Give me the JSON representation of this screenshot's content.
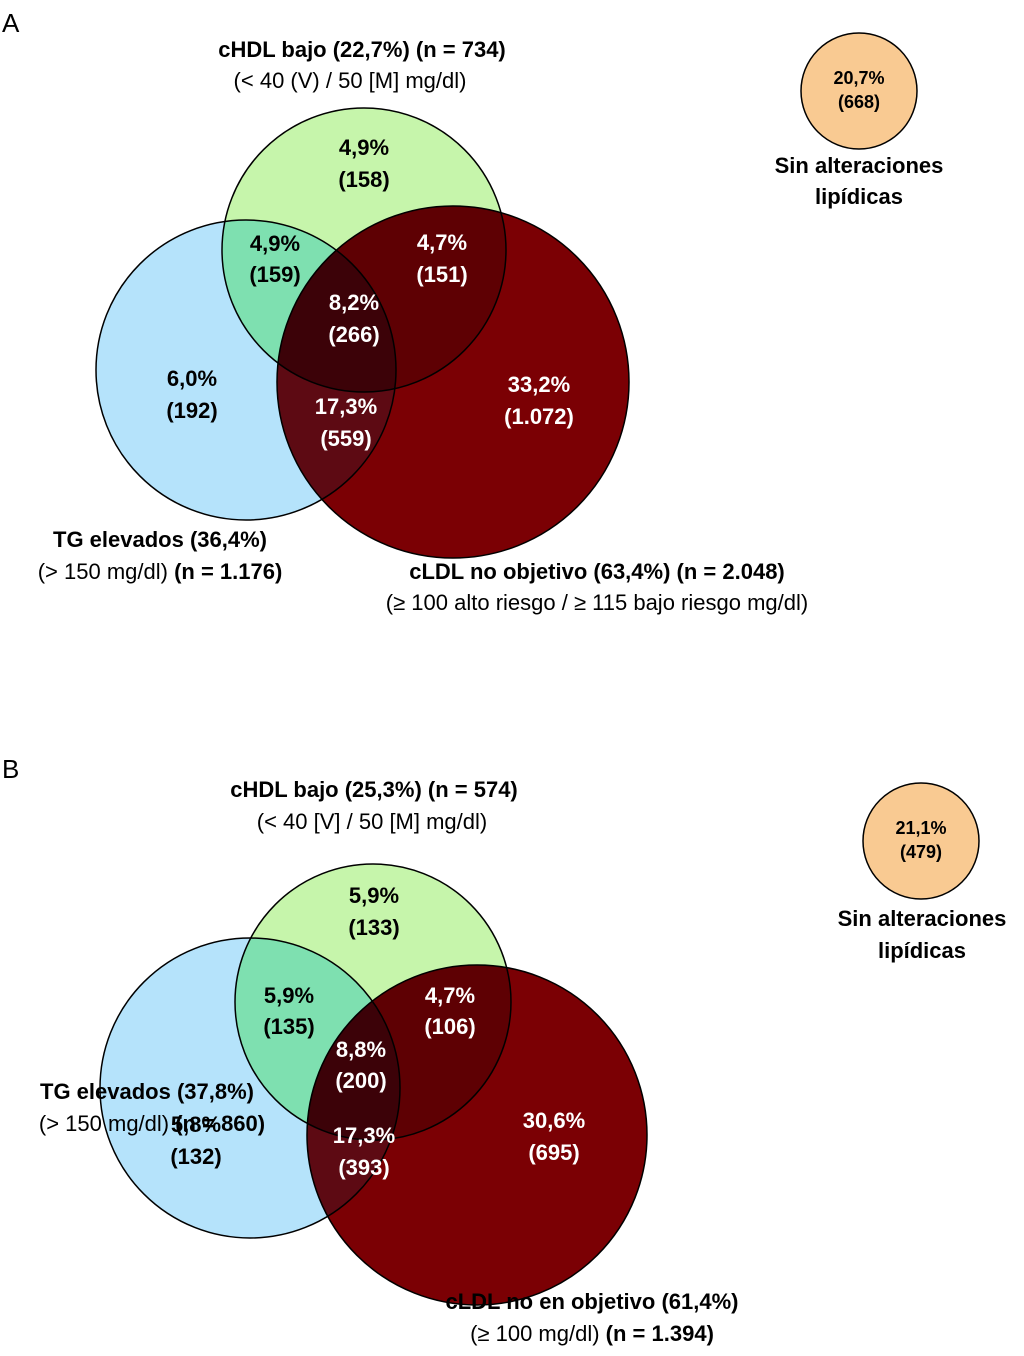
{
  "panels": [
    {
      "letter": "A",
      "hdl": {
        "title": "cHDL bajo (22,7%) (n = 734)",
        "subtitle": "(< 40 (V) / 50 [M] mg/dl)"
      },
      "tg": {
        "title": "TG elevados (36,4%)",
        "subtitle_plain": "(> 150 mg/dl) ",
        "subtitle_bold": "(n = 1.176)"
      },
      "ldl": {
        "title": "cLDL no objetivo (63,4%) (n = 2.048)",
        "subtitle_plain": "(≥ 100 alto riesgo / ≥ 115 bajo riesgo mg/dl)",
        "subtitle_bold": ""
      },
      "regions": {
        "hdl_only": {
          "pct": "4,9%",
          "n": "(158)"
        },
        "hdl_tg": {
          "pct": "4,9%",
          "n": "(159)"
        },
        "hdl_ldl": {
          "pct": "4,7%",
          "n": "(151)"
        },
        "all": {
          "pct": "8,2%",
          "n": "(266)"
        },
        "tg_only": {
          "pct": "6,0%",
          "n": "(192)"
        },
        "tg_ldl": {
          "pct": "17,3%",
          "n": "(559)"
        },
        "ldl_only": {
          "pct": "33,2%",
          "n": "(1.072)"
        }
      },
      "none": {
        "pct": "20,7%",
        "n": "(668)",
        "label1": "Sin alteraciones",
        "label2": "lipídicas"
      }
    },
    {
      "letter": "B",
      "hdl": {
        "title": "cHDL bajo (25,3%) (n = 574)",
        "subtitle": "(< 40 [V] / 50 [M] mg/dl)"
      },
      "tg": {
        "title": "TG elevados (37,8%)",
        "subtitle_plain": "(> 150 mg/dl) ",
        "subtitle_bold": "(n = 860)"
      },
      "ldl": {
        "title": "cLDL no en objetivo (61,4%)",
        "subtitle_plain": "(≥ 100 mg/dl) ",
        "subtitle_bold": "(n = 1.394)"
      },
      "regions": {
        "hdl_only": {
          "pct": "5,9%",
          "n": "(133)"
        },
        "hdl_tg": {
          "pct": "5,9%",
          "n": "(135)"
        },
        "hdl_ldl": {
          "pct": "4,7%",
          "n": "(106)"
        },
        "all": {
          "pct": "8,8%",
          "n": "(200)"
        },
        "tg_only": {
          "pct": "5,8%",
          "n": "(132)"
        },
        "tg_ldl": {
          "pct": "17,3%",
          "n": "(393)"
        },
        "ldl_only": {
          "pct": "30,6%",
          "n": "(695)"
        }
      },
      "none": {
        "pct": "21,1%",
        "n": "(479)",
        "label1": "Sin alteraciones",
        "label2": "lipídicas"
      }
    }
  ],
  "colors": {
    "hdl": "#c6f5ab",
    "tg": "#b5e3fb",
    "ldl": "#7b0004",
    "hdl_tg": "#7ee0b0",
    "hdl_ldl": "#5e0003",
    "tg_ldl": "#5d0a13",
    "all": "#3c0208",
    "none": "#f9ca92"
  }
}
